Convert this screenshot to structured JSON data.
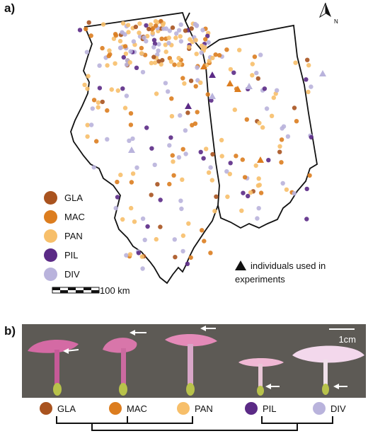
{
  "panels": {
    "a": "a)",
    "b": "b)"
  },
  "colors": {
    "GLA": "#a9531f",
    "MAC": "#dc7d1f",
    "PAN": "#f7bf6a",
    "PIL": "#5b2a86",
    "DIV": "#b9b3dc"
  },
  "legend": [
    {
      "code": "GLA",
      "label": "GLA"
    },
    {
      "code": "MAC",
      "label": "MAC"
    },
    {
      "code": "PAN",
      "label": "PAN"
    },
    {
      "code": "PIL",
      "label": "PIL"
    },
    {
      "code": "DIV",
      "label": "DIV"
    }
  ],
  "triangle_legend": {
    "line1": "individuals used in",
    "line2": "experiments"
  },
  "scale_bar": {
    "label": "100 km"
  },
  "north_arrow": {
    "label": "N",
    "icon": "north-arrow-icon"
  },
  "photo_panel": {
    "scale_label": "1cm"
  },
  "taxa_row": [
    {
      "code": "GLA",
      "label": "GLA"
    },
    {
      "code": "MAC",
      "label": "MAC"
    },
    {
      "code": "PAN",
      "label": "PAN"
    },
    {
      "code": "PIL",
      "label": "PIL"
    },
    {
      "code": "DIV",
      "label": "DIV"
    }
  ]
}
